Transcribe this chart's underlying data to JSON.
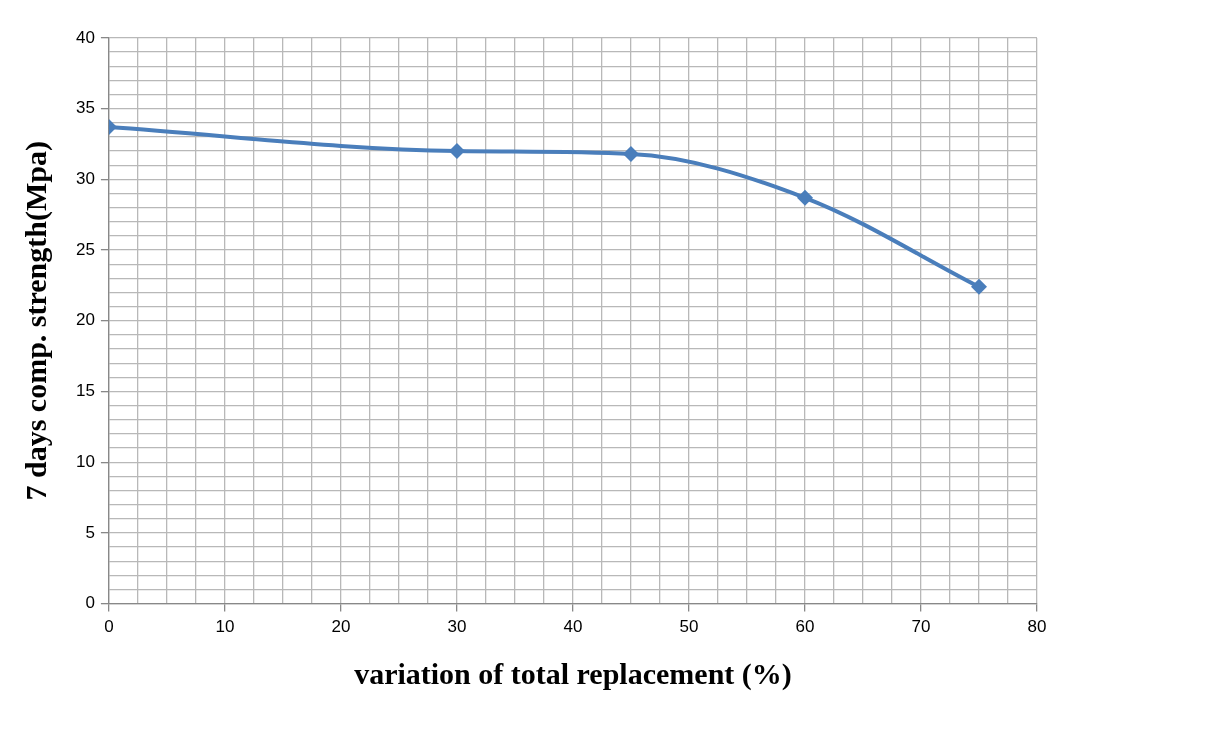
{
  "chart_data": {
    "type": "line",
    "xlabel": "variation of total replacement (%)",
    "ylabel": "7 days comp. strength(Mpa)",
    "x": [
      0,
      30,
      45,
      60,
      75
    ],
    "series": [
      {
        "color": "#4a7ebb",
        "values": [
          33.7,
          32.0,
          31.8,
          28.7,
          22.4
        ]
      }
    ],
    "xlim": [
      0,
      80
    ],
    "ylim": [
      0,
      40
    ],
    "xticks": [
      0,
      {
        "value": 2.5,
        "label": null
      },
      {
        "value": 5,
        "label": null
      },
      {
        "value": 7.5,
        "label": null
      },
      10,
      {
        "value": 12.5,
        "label": null
      },
      {
        "value": 15,
        "label": null
      },
      {
        "value": 17.5,
        "label": null
      },
      20,
      {
        "value": 22.5,
        "label": null
      },
      {
        "value": 25,
        "label": null
      },
      {
        "value": 27.5,
        "label": null
      },
      30,
      {
        "value": 32.5,
        "label": null
      },
      {
        "value": 35,
        "label": null
      },
      {
        "value": 37.5,
        "label": null
      },
      40,
      {
        "value": 42.5,
        "label": null
      },
      {
        "value": 45,
        "label": null
      },
      {
        "value": 47.5,
        "label": null
      },
      50,
      {
        "value": 52.5,
        "label": null
      },
      {
        "value": 55,
        "label": null
      },
      {
        "value": 57.5,
        "label": null
      },
      60,
      {
        "value": 62.5,
        "label": null
      },
      {
        "value": 65,
        "label": null
      },
      {
        "value": 67.5,
        "label": null
      },
      70,
      {
        "value": 72.5,
        "label": null
      },
      {
        "value": 75,
        "label": null
      },
      {
        "value": 77.5,
        "label": null
      },
      80
    ],
    "yticks": [
      0,
      {
        "value": 1,
        "label": null
      },
      {
        "value": 2,
        "label": null
      },
      {
        "value": 3,
        "label": null
      },
      {
        "value": 4,
        "label": null
      },
      5,
      {
        "value": 6,
        "label": null
      },
      {
        "value": 7,
        "label": null
      },
      {
        "value": 8,
        "label": null
      },
      {
        "value": 9,
        "label": null
      },
      10,
      {
        "value": 11,
        "label": null
      },
      {
        "value": 12,
        "label": null
      },
      {
        "value": 13,
        "label": null
      },
      {
        "value": 14,
        "label": null
      },
      15,
      {
        "value": 16,
        "label": null
      },
      {
        "value": 17,
        "label": null
      },
      {
        "value": 18,
        "label": null
      },
      {
        "value": 19,
        "label": null
      },
      20,
      {
        "value": 21,
        "label": null
      },
      {
        "value": 22,
        "label": null
      },
      {
        "value": 23,
        "label": null
      },
      {
        "value": 24,
        "label": null
      },
      25,
      {
        "value": 26,
        "label": null
      },
      {
        "value": 27,
        "label": null
      },
      {
        "value": 28,
        "label": null
      },
      {
        "value": 29,
        "label": null
      },
      30,
      {
        "value": 31,
        "label": null
      },
      {
        "value": 32,
        "label": null
      },
      {
        "value": 33,
        "label": null
      },
      {
        "value": 34,
        "label": null
      },
      35,
      {
        "value": 36,
        "label": null
      },
      {
        "value": 37,
        "label": null
      },
      {
        "value": 38,
        "label": null
      },
      {
        "value": 39,
        "label": null
      },
      40
    ],
    "grid": true,
    "legend": false,
    "marker": "diamond",
    "line_style": "solid"
  }
}
